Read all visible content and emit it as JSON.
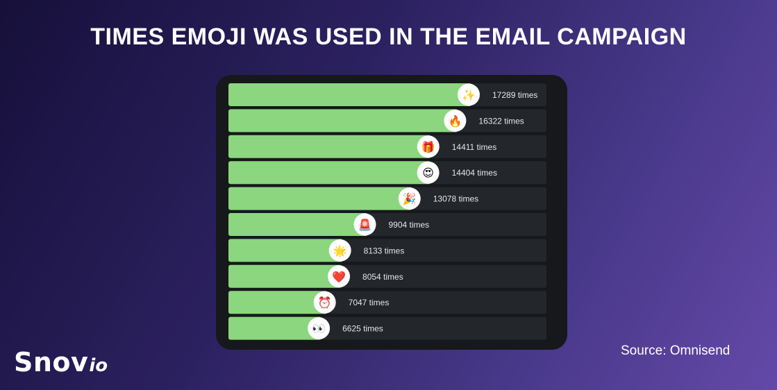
{
  "title": "TIMES EMOJI WAS USED IN THE EMAIL CAMPAIGN",
  "source": "Source: Omnisend",
  "logo": {
    "main": "Snov",
    "suffix": "io"
  },
  "colors": {
    "bar": "#8bd67e",
    "track": "#23262a",
    "panel": "#16181b",
    "label": "#e6e6e6",
    "badge": "#ffffff"
  },
  "chart_data": {
    "type": "bar",
    "orientation": "horizontal",
    "categories": [
      "sparkles",
      "fire",
      "wrapped-gift",
      "heart-eyes",
      "party-popper",
      "police-light",
      "glowing-star",
      "red-heart",
      "alarm-clock",
      "eyes"
    ],
    "emoji": [
      "✨",
      "🔥",
      "🎁",
      "😍",
      "🎉",
      "🚨",
      "🌟",
      "❤️",
      "⏰",
      "👀"
    ],
    "values": [
      17289,
      16322,
      14411,
      14404,
      13078,
      9904,
      8133,
      8054,
      7047,
      6625
    ],
    "labels": [
      "17289 times",
      "16322 times",
      "14411 times",
      "14404 times",
      "13078 times",
      "9904 times",
      "8133 times",
      "8054 times",
      "7047 times",
      "6625 times"
    ],
    "grid": false,
    "legend": "none"
  }
}
